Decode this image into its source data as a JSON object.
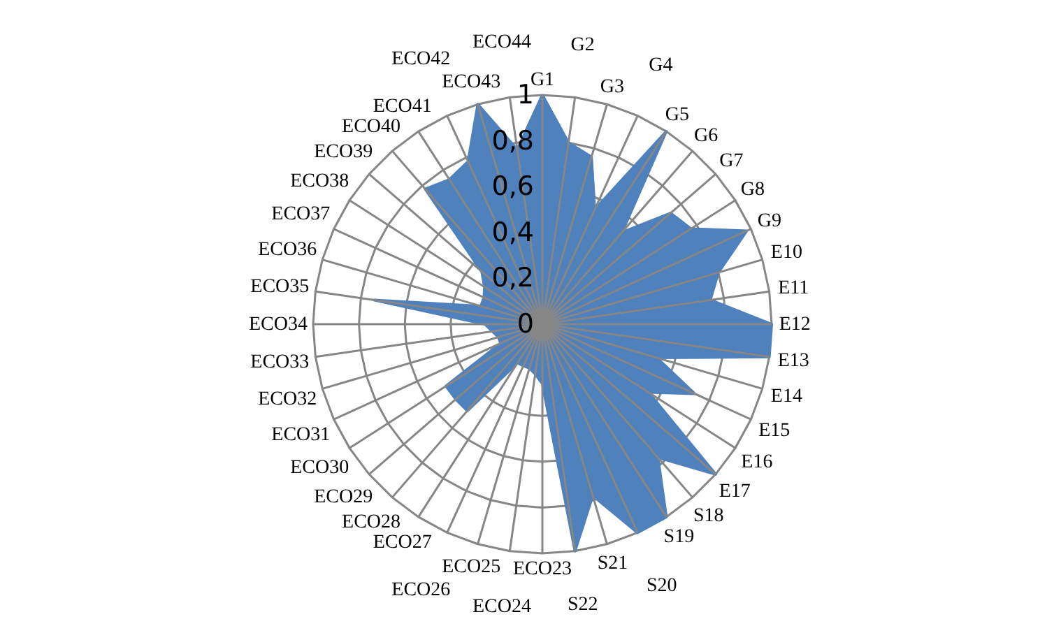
{
  "chart_data": {
    "type": "radar",
    "categories": [
      "G1",
      "G2",
      "G3",
      "G4",
      "G5",
      "G6",
      "G7",
      "G8",
      "G9",
      "E10",
      "E11",
      "E12",
      "E13",
      "E14",
      "E15",
      "E16",
      "E17",
      "S18",
      "S19",
      "S20",
      "S21",
      "S22",
      "ECO23",
      "ECO24",
      "ECO25",
      "ECO26",
      "ECO27",
      "ECO28",
      "ECO29",
      "ECO30",
      "ECO31",
      "ECO32",
      "ECO33",
      "ECO34",
      "ECO35",
      "ECO36",
      "ECO37",
      "ECO38",
      "ECO39",
      "ECO40",
      "ECO41",
      "ECO42",
      "ECO43",
      "ECO44"
    ],
    "series": [
      {
        "color": "#4f81bd",
        "values": [
          1.0,
          0.8,
          0.76,
          0.55,
          1.0,
          0.53,
          0.74,
          0.77,
          0.98,
          0.8,
          0.74,
          1.0,
          1.0,
          0.52,
          0.73,
          0.55,
          1.0,
          0.77,
          1.0,
          1.0,
          0.78,
          1.0,
          0.26,
          0.22,
          0.2,
          0.2,
          0.2,
          0.5,
          0.5,
          0.5,
          0.2,
          0.2,
          0.22,
          0.25,
          0.74,
          0.28,
          0.28,
          0.3,
          0.35,
          0.78,
          0.75,
          0.78,
          1.0,
          0.77
        ]
      }
    ],
    "ylim": [
      0,
      1
    ],
    "yticks": [
      0,
      {
        "value": 0.2,
        "label": "0,2"
      },
      {
        "value": 0.4,
        "label": "0,4"
      },
      {
        "value": 0.6,
        "label": "0,6"
      },
      {
        "value": 0.8,
        "label": "0,8"
      },
      1
    ],
    "grid": true
  }
}
